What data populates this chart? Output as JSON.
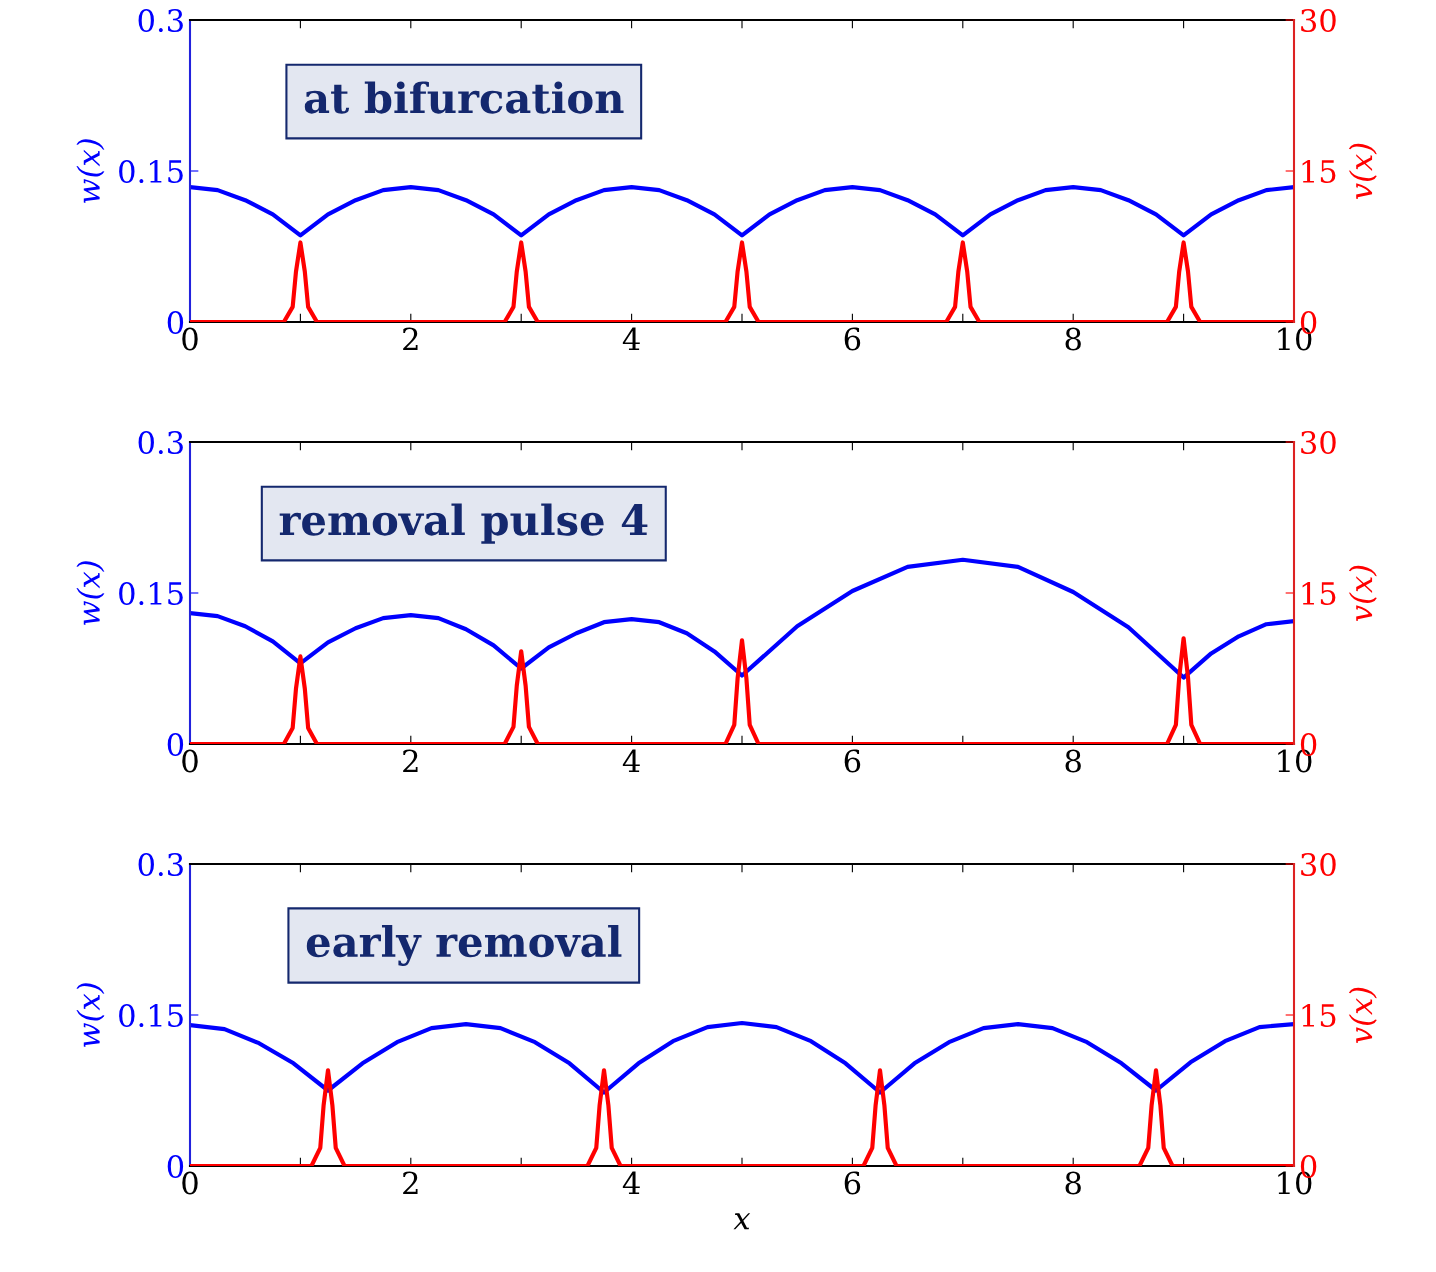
{
  "chart_data": [
    {
      "type": "line",
      "annotations": [
        "at bifurcation"
      ],
      "ylabel": "w(x)",
      "y2label": "v(x)",
      "xlim": [
        0,
        10
      ],
      "xticks": [
        0,
        {
          "value": 1,
          "label": null
        },
        2,
        {
          "value": 3,
          "label": null
        },
        4,
        {
          "value": 5,
          "label": null
        },
        6,
        {
          "value": 7,
          "label": null
        },
        8,
        {
          "value": 9,
          "label": null
        },
        10
      ],
      "ylim": [
        0,
        0.3
      ],
      "yticks": [
        0,
        0.15,
        0.3
      ],
      "y2lim": [
        0,
        30
      ],
      "y2ticks": [
        0,
        15,
        30
      ],
      "series": [
        {
          "color": "#0000ff",
          "x": [
            0,
            0.25,
            0.5,
            0.75,
            1,
            1.25,
            1.5,
            1.75,
            2,
            2.25,
            2.5,
            2.75,
            3,
            3.25,
            3.5,
            3.75,
            4,
            4.25,
            4.5,
            4.75,
            5,
            5.25,
            5.5,
            5.75,
            6,
            6.25,
            6.5,
            6.75,
            7,
            7.25,
            7.5,
            7.75,
            8,
            8.25,
            8.5,
            8.75,
            9,
            9.25,
            9.5,
            9.75,
            10
          ],
          "values": [
            0.134,
            0.131,
            0.121,
            0.107,
            0.086,
            0.107,
            0.121,
            0.131,
            0.134,
            0.131,
            0.121,
            0.107,
            0.086,
            0.107,
            0.121,
            0.131,
            0.134,
            0.131,
            0.121,
            0.107,
            0.086,
            0.107,
            0.121,
            0.131,
            0.134,
            0.131,
            0.121,
            0.107,
            0.086,
            0.107,
            0.121,
            0.131,
            0.134,
            0.131,
            0.121,
            0.107,
            0.086,
            0.107,
            0.121,
            0.131,
            0.134
          ]
        },
        {
          "color": "#ff0000",
          "axis": "y2",
          "x": [
            0,
            0.85,
            0.93,
            0.96,
            1,
            1.04,
            1.07,
            1.15,
            2.85,
            2.93,
            2.96,
            3,
            3.04,
            3.07,
            3.15,
            4.85,
            4.93,
            4.96,
            5,
            5.04,
            5.07,
            5.15,
            6.85,
            6.93,
            6.96,
            7,
            7.04,
            7.07,
            7.15,
            8.85,
            8.93,
            8.96,
            9,
            9.04,
            9.07,
            9.15,
            10
          ],
          "values": [
            0,
            0,
            1.5,
            5,
            7.9,
            5,
            1.5,
            0,
            0,
            1.5,
            5,
            7.9,
            5,
            1.5,
            0,
            0,
            1.5,
            5,
            7.9,
            5,
            1.5,
            0,
            0,
            1.5,
            5,
            7.9,
            5,
            1.5,
            0,
            0,
            1.5,
            5,
            7.9,
            5,
            1.5,
            0,
            0
          ]
        }
      ]
    },
    {
      "type": "line",
      "annotations": [
        "removal pulse 4"
      ],
      "ylabel": "w(x)",
      "y2label": "v(x)",
      "xlim": [
        0,
        10
      ],
      "xticks": [
        0,
        {
          "value": 1,
          "label": null
        },
        2,
        {
          "value": 3,
          "label": null
        },
        4,
        {
          "value": 5,
          "label": null
        },
        6,
        {
          "value": 7,
          "label": null
        },
        8,
        {
          "value": 9,
          "label": null
        },
        10
      ],
      "ylim": [
        0,
        0.3
      ],
      "yticks": [
        0,
        0.15,
        0.3
      ],
      "y2lim": [
        0,
        30
      ],
      "y2ticks": [
        0,
        15,
        30
      ],
      "series": [
        {
          "color": "#0000ff",
          "x": [
            0,
            0.25,
            0.5,
            0.75,
            1,
            1.25,
            1.5,
            1.75,
            2,
            2.25,
            2.5,
            2.75,
            3,
            3.25,
            3.5,
            3.75,
            4,
            4.25,
            4.5,
            4.75,
            5,
            5.5,
            6,
            6.5,
            7,
            7.5,
            8,
            8.5,
            9,
            9.25,
            9.5,
            9.75,
            10
          ],
          "values": [
            0.13,
            0.127,
            0.117,
            0.102,
            0.08,
            0.101,
            0.115,
            0.125,
            0.128,
            0.125,
            0.114,
            0.098,
            0.075,
            0.096,
            0.11,
            0.121,
            0.124,
            0.121,
            0.11,
            0.092,
            0.068,
            0.117,
            0.152,
            0.176,
            0.183,
            0.176,
            0.151,
            0.116,
            0.066,
            0.09,
            0.107,
            0.119,
            0.122
          ]
        },
        {
          "color": "#ff0000",
          "axis": "y2",
          "x": [
            0,
            0.85,
            0.93,
            0.96,
            1,
            1.04,
            1.07,
            1.15,
            2.85,
            2.93,
            2.96,
            3,
            3.04,
            3.07,
            3.15,
            4.85,
            4.93,
            4.96,
            5,
            5.04,
            5.07,
            5.15,
            8.85,
            8.93,
            8.96,
            9,
            9.04,
            9.07,
            9.15,
            10
          ],
          "values": [
            0,
            0,
            1.6,
            5.5,
            8.7,
            5.5,
            1.6,
            0,
            0,
            1.7,
            5.8,
            9.2,
            5.8,
            1.7,
            0,
            0,
            1.9,
            6.5,
            10.3,
            6.5,
            1.9,
            0,
            0,
            1.9,
            6.6,
            10.5,
            6.6,
            1.9,
            0,
            0
          ]
        }
      ]
    },
    {
      "type": "line",
      "annotations": [
        "early removal"
      ],
      "ylabel": "w(x)",
      "y2label": "v(x)",
      "xlabel": "x",
      "xlim": [
        0,
        10
      ],
      "xticks": [
        0,
        {
          "value": 1,
          "label": null
        },
        2,
        {
          "value": 3,
          "label": null
        },
        4,
        {
          "value": 5,
          "label": null
        },
        6,
        {
          "value": 7,
          "label": null
        },
        8,
        {
          "value": 9,
          "label": null
        },
        10
      ],
      "ylim": [
        0,
        0.3
      ],
      "yticks": [
        0,
        0.15,
        0.3
      ],
      "y2lim": [
        0,
        30
      ],
      "y2ticks": [
        0,
        15,
        30
      ],
      "series": [
        {
          "color": "#0000ff",
          "x": [
            0,
            0.3125,
            0.625,
            0.9375,
            1.25,
            1.5625,
            1.875,
            2.1875,
            2.5,
            2.8125,
            3.125,
            3.4375,
            3.75,
            4.0625,
            4.375,
            4.6875,
            5,
            5.3125,
            5.625,
            5.9375,
            6.25,
            6.5625,
            6.875,
            7.1875,
            7.5,
            7.8125,
            8.125,
            8.4375,
            8.75,
            9.0625,
            9.375,
            9.6875,
            10
          ],
          "values": [
            0.14,
            0.136,
            0.122,
            0.102,
            0.075,
            0.102,
            0.123,
            0.137,
            0.141,
            0.137,
            0.123,
            0.102,
            0.073,
            0.102,
            0.124,
            0.138,
            0.142,
            0.138,
            0.124,
            0.102,
            0.073,
            0.102,
            0.123,
            0.137,
            0.141,
            0.137,
            0.123,
            0.102,
            0.075,
            0.103,
            0.124,
            0.138,
            0.141
          ]
        },
        {
          "color": "#ff0000",
          "axis": "y2",
          "x": [
            0,
            1.1,
            1.18,
            1.21,
            1.25,
            1.29,
            1.32,
            1.4,
            3.6,
            3.68,
            3.71,
            3.75,
            3.79,
            3.82,
            3.9,
            6.1,
            6.18,
            6.21,
            6.25,
            6.29,
            6.32,
            6.4,
            8.6,
            8.68,
            8.71,
            8.75,
            8.79,
            8.82,
            8.9,
            10
          ],
          "values": [
            0,
            0,
            1.8,
            6,
            9.5,
            6,
            1.8,
            0,
            0,
            1.8,
            6,
            9.5,
            6,
            1.8,
            0,
            0,
            1.8,
            6,
            9.5,
            6,
            1.8,
            0,
            0,
            1.8,
            6,
            9.5,
            6,
            1.8,
            0,
            0
          ]
        }
      ]
    }
  ]
}
